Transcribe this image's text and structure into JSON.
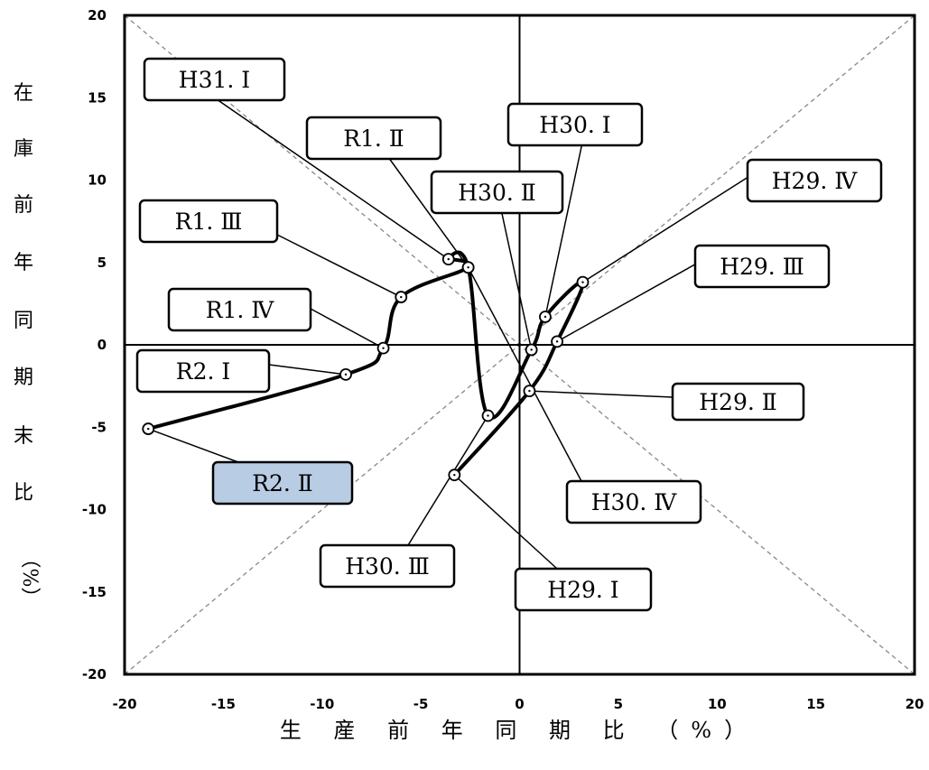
{
  "chart_data": {
    "type": "scatter",
    "xlabel": "生 産 前 年 同 期 比 （%）",
    "ylabel": [
      "在",
      "庫",
      "前",
      "年",
      "同",
      "期",
      "末",
      "比",
      "（%）"
    ],
    "xlim": [
      -20,
      20
    ],
    "ylim": [
      -20,
      20
    ],
    "x_ticks": [
      "-20",
      "-15",
      "-10",
      "-5",
      "0",
      "5",
      "10",
      "15",
      "20"
    ],
    "y_ticks": [
      "20",
      "15",
      "10",
      "5",
      "0",
      "-5",
      "-10",
      "-15",
      "-20"
    ],
    "diagonal_guides": true,
    "series": [
      {
        "points": [
          {
            "label": "H29. Ⅰ",
            "x": -3.3,
            "y": -7.9
          },
          {
            "label": "H29. Ⅱ",
            "x": 0.5,
            "y": -2.8
          },
          {
            "label": "H29. Ⅲ",
            "x": 1.9,
            "y": 0.2
          },
          {
            "label": "H29. Ⅳ",
            "x": 3.2,
            "y": 3.8
          },
          {
            "label": "H30. Ⅰ",
            "x": 1.3,
            "y": 1.7
          },
          {
            "label": "H30. Ⅱ",
            "x": 0.6,
            "y": -0.3
          },
          {
            "label": "H30. Ⅲ",
            "x": -1.6,
            "y": -4.3
          },
          {
            "label": "H30. Ⅳ",
            "x": -2.6,
            "y": 4.7
          },
          {
            "label": "H31. Ⅰ",
            "x": -3.6,
            "y": 5.2
          },
          {
            "label": "R1. Ⅱ",
            "x": -2.6,
            "y": 4.7
          },
          {
            "label": "R1. Ⅲ",
            "x": -6.0,
            "y": 2.9
          },
          {
            "label": "R1. Ⅳ",
            "x": -6.9,
            "y": -0.2
          },
          {
            "label": "R2. Ⅰ",
            "x": -8.8,
            "y": -1.8
          },
          {
            "label": "R2. Ⅱ",
            "x": -18.8,
            "y": -5.1
          }
        ]
      }
    ],
    "highlight_label": "R2. Ⅱ",
    "highlight_color": "#b8cce4"
  }
}
